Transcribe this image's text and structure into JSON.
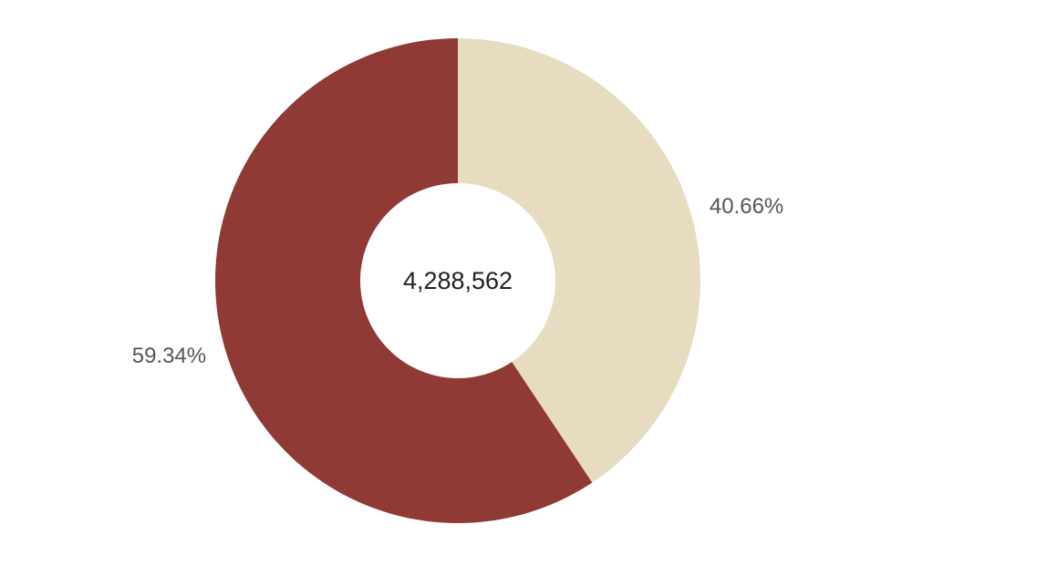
{
  "chart_data": {
    "type": "pie",
    "variant": "donut",
    "center_label": "4,288,562",
    "slices": [
      {
        "value": 40.66,
        "label": "40.66%",
        "color": "#e8dcc0"
      },
      {
        "value": 59.34,
        "label": "59.34%",
        "color": "#8f3a34"
      }
    ]
  }
}
